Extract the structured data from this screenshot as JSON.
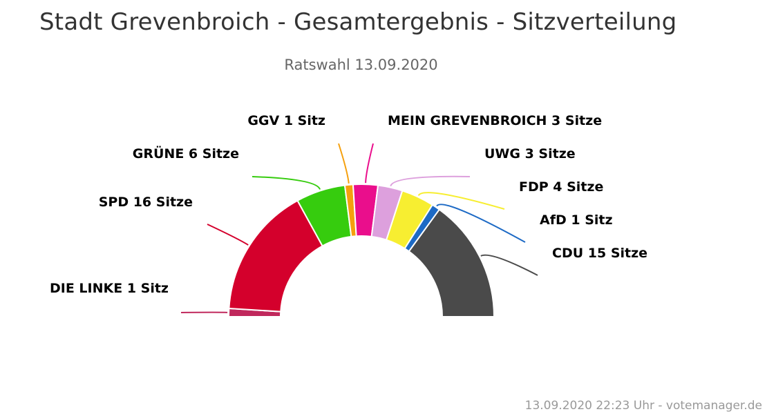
{
  "chart_data": {
    "type": "pie",
    "title": "Stadt Grevenbroich - Gesamtergebnis - Sitzverteilung",
    "subtitle": "Ratswahl 13.09.2020",
    "footer": "13.09.2020 22:23 Uhr - votemanager.de",
    "series": [
      {
        "name": "DIE LINKE",
        "value": 1,
        "label": "DIE LINKE 1 Sitz",
        "color": "#c0285c"
      },
      {
        "name": "SPD",
        "value": 16,
        "label": "SPD 16 Sitze",
        "color": "#d4002c"
      },
      {
        "name": "GRÜNE",
        "value": 6,
        "label": "GRÜNE 6 Sitze",
        "color": "#36cc0e"
      },
      {
        "name": "GGV",
        "value": 1,
        "label": "GGV 1 Sitz",
        "color": "#f5a00e"
      },
      {
        "name": "MEIN GREVENBROICH",
        "value": 3,
        "label": "MEIN GREVENBROICH 3 Sitze",
        "color": "#ea0e8c"
      },
      {
        "name": "UWG",
        "value": 3,
        "label": "UWG 3 Sitze",
        "color": "#dda0dd"
      },
      {
        "name": "FDP",
        "value": 4,
        "label": "FDP 4 Sitze",
        "color": "#f7ee31"
      },
      {
        "name": "AfD",
        "value": 1,
        "label": "AfD 1 Sitz",
        "color": "#1d6ac5"
      },
      {
        "name": "CDU",
        "value": 15,
        "label": "CDU 15 Sitze",
        "color": "#4a4a4a"
      }
    ]
  }
}
